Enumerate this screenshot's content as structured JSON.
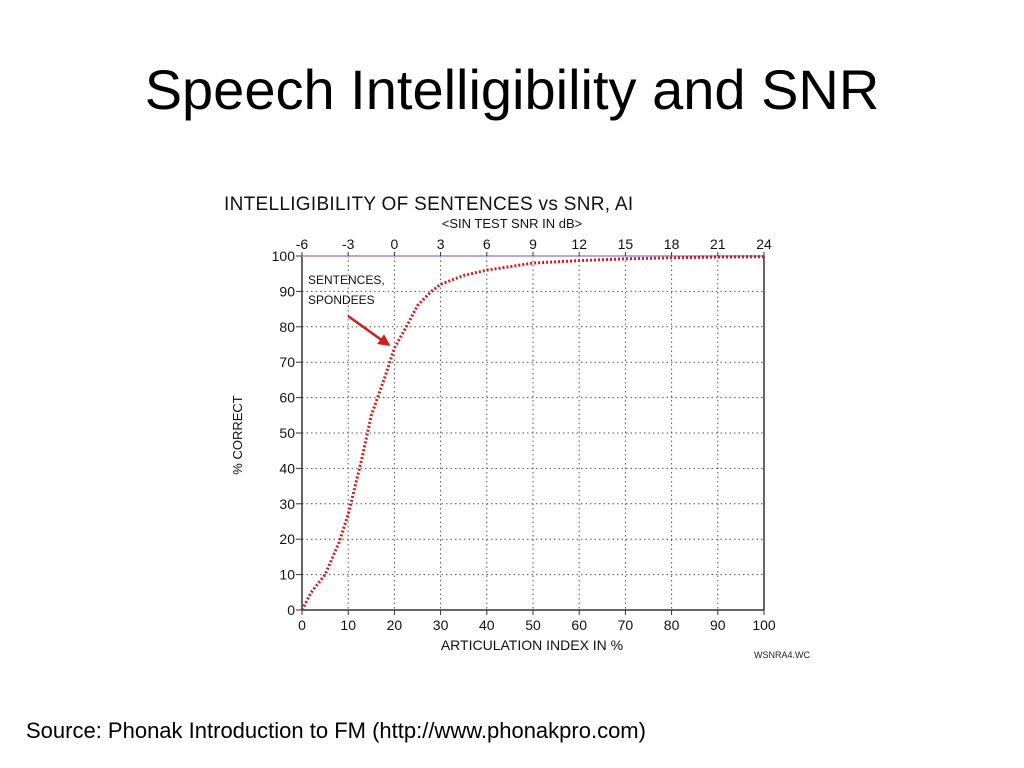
{
  "slide": {
    "title": "Speech Intelligibility and SNR",
    "source": "Source: Phonak Introduction to FM (http://www.phonakpro.com)"
  },
  "chart_data": {
    "type": "line",
    "title": "INTELLIGIBILITY OF SENTENCES vs SNR, AI",
    "subtitle": "<SIN TEST SNR IN dB>",
    "xlabel": "ARTICULATION INDEX IN %",
    "ylabel": "% CORRECT",
    "xlim": [
      0,
      100
    ],
    "ylim": [
      0,
      100
    ],
    "x_ticks": [
      0,
      10,
      20,
      30,
      40,
      50,
      60,
      70,
      80,
      90,
      100
    ],
    "y_ticks": [
      0,
      10,
      20,
      30,
      40,
      50,
      60,
      70,
      80,
      90,
      100
    ],
    "top_axis": {
      "ticks": [
        "-6",
        "-3",
        "0",
        "3",
        "6",
        "9",
        "12",
        "15",
        "18",
        "21",
        "24"
      ]
    },
    "grid": true,
    "series": [
      {
        "name": "SENTENCES, SPONDEES",
        "color": "#cc1f1f",
        "x": [
          0,
          2,
          5,
          8,
          10,
          13,
          15,
          18,
          20,
          23,
          25,
          28,
          30,
          35,
          40,
          45,
          50,
          60,
          70,
          80,
          90,
          100
        ],
        "y": [
          0,
          5,
          10,
          19,
          27,
          43,
          55,
          66,
          74,
          81,
          86,
          90,
          92,
          94.5,
          96,
          97,
          98,
          98.7,
          99.2,
          99.5,
          99.7,
          99.8
        ]
      }
    ],
    "annotation": {
      "text": [
        "SENTENCES,",
        "SPONDEES"
      ],
      "arrow_to_x": 20,
      "arrow_to_y": 74
    },
    "footnote": "WSNRA4.WC"
  }
}
